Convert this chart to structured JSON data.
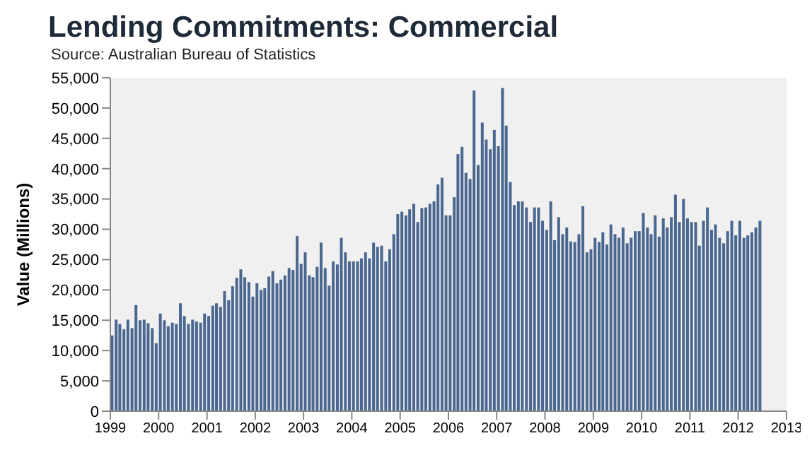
{
  "chart_data": {
    "type": "bar",
    "title": "Lending Commitments: Commercial",
    "subtitle": "Source: Australian Bureau of Statistics",
    "ylabel": "Value (Millions)",
    "color": "#4a6790",
    "x": [
      "1999-01",
      "1999-02",
      "1999-03",
      "1999-04",
      "1999-05",
      "1999-06",
      "1999-07",
      "1999-08",
      "1999-09",
      "1999-10",
      "1999-11",
      "1999-12",
      "2000-01",
      "2000-02",
      "2000-03",
      "2000-04",
      "2000-05",
      "2000-06",
      "2000-07",
      "2000-08",
      "2000-09",
      "2000-10",
      "2000-11",
      "2000-12",
      "2001-01",
      "2001-02",
      "2001-03",
      "2001-04",
      "2001-05",
      "2001-06",
      "2001-07",
      "2001-08",
      "2001-09",
      "2001-10",
      "2001-11",
      "2001-12",
      "2002-01",
      "2002-02",
      "2002-03",
      "2002-04",
      "2002-05",
      "2002-06",
      "2002-07",
      "2002-08",
      "2002-09",
      "2002-10",
      "2002-11",
      "2002-12",
      "2003-01",
      "2003-02",
      "2003-03",
      "2003-04",
      "2003-05",
      "2003-06",
      "2003-07",
      "2003-08",
      "2003-09",
      "2003-10",
      "2003-11",
      "2003-12",
      "2004-01",
      "2004-02",
      "2004-03",
      "2004-04",
      "2004-05",
      "2004-06",
      "2004-07",
      "2004-08",
      "2004-09",
      "2004-10",
      "2004-11",
      "2004-12",
      "2005-01",
      "2005-02",
      "2005-03",
      "2005-04",
      "2005-05",
      "2005-06",
      "2005-07",
      "2005-08",
      "2005-09",
      "2005-10",
      "2005-11",
      "2005-12",
      "2006-01",
      "2006-02",
      "2006-03",
      "2006-04",
      "2006-05",
      "2006-06",
      "2006-07",
      "2006-08",
      "2006-09",
      "2006-10",
      "2006-11",
      "2006-12",
      "2007-01",
      "2007-02",
      "2007-03",
      "2007-04",
      "2007-05",
      "2007-06",
      "2007-07",
      "2007-08",
      "2007-09",
      "2007-10",
      "2007-11",
      "2007-12",
      "2008-01",
      "2008-02",
      "2008-03",
      "2008-04",
      "2008-05",
      "2008-06",
      "2008-07",
      "2008-08",
      "2008-09",
      "2008-10",
      "2008-11",
      "2008-12",
      "2009-01",
      "2009-02",
      "2009-03",
      "2009-04",
      "2009-05",
      "2009-06",
      "2009-07",
      "2009-08",
      "2009-09",
      "2009-10",
      "2009-11",
      "2009-12",
      "2010-01",
      "2010-02",
      "2010-03",
      "2010-04",
      "2010-05",
      "2010-06",
      "2010-07",
      "2010-08",
      "2010-09",
      "2010-10",
      "2010-11",
      "2010-12",
      "2011-01",
      "2011-02",
      "2011-03",
      "2011-04",
      "2011-05",
      "2011-06",
      "2011-07",
      "2011-08",
      "2011-09",
      "2011-10",
      "2011-11",
      "2011-12",
      "2012-01",
      "2012-02",
      "2012-03",
      "2012-04",
      "2012-05",
      "2012-06"
    ],
    "values": [
      12500,
      15100,
      14400,
      13500,
      15100,
      13700,
      17500,
      15000,
      15100,
      14500,
      13700,
      11200,
      16100,
      15000,
      14000,
      14600,
      14400,
      17800,
      15700,
      14400,
      15100,
      14800,
      14600,
      16100,
      15700,
      17400,
      17800,
      17200,
      19800,
      18300,
      20600,
      22000,
      23400,
      22100,
      21300,
      18900,
      21100,
      20000,
      20300,
      22200,
      23100,
      21100,
      21700,
      22400,
      23600,
      23300,
      28900,
      24300,
      26200,
      22400,
      22100,
      23800,
      27800,
      23600,
      20700,
      24700,
      24200,
      28600,
      26200,
      24700,
      24700,
      24700,
      25200,
      26200,
      25200,
      27800,
      27100,
      27300,
      24700,
      26700,
      29200,
      32500,
      32900,
      32300,
      33300,
      34200,
      31200,
      33500,
      33600,
      34200,
      34600,
      37400,
      38500,
      32300,
      32300,
      35300,
      42400,
      43600,
      39300,
      38300,
      52900,
      40600,
      47600,
      44800,
      43200,
      46400,
      43700,
      53300,
      47100,
      37800,
      34000,
      34600,
      34600,
      33600,
      31200,
      33600,
      33600,
      31400,
      29900,
      34600,
      28200,
      32000,
      29200,
      30300,
      28000,
      27900,
      29200,
      33800,
      26200,
      26700,
      28600,
      27900,
      29500,
      27500,
      30800,
      29200,
      28600,
      30300,
      27700,
      28600,
      29700,
      29700,
      32700,
      30300,
      29200,
      32300,
      28800,
      31800,
      30300,
      32000,
      35700,
      31200,
      35000,
      31800,
      31200,
      31200,
      27300,
      31400,
      33600,
      29900,
      30800,
      28600,
      27700,
      29700,
      31400,
      29000,
      31400,
      28600,
      29000,
      29500,
      30300,
      31400
    ],
    "xlim": [
      "1999",
      "2013"
    ],
    "xticks": [
      "1999",
      "2000",
      "2001",
      "2002",
      "2003",
      "2004",
      "2005",
      "2006",
      "2007",
      "2008",
      "2009",
      "2010",
      "2011",
      "2012",
      "2013"
    ],
    "ylim": [
      0,
      55000
    ],
    "yticks": [
      0,
      {
        "value": 5000,
        "label": "5,000"
      },
      {
        "value": 10000,
        "label": "10,000"
      },
      {
        "value": 15000,
        "label": "15,000"
      },
      {
        "value": 20000,
        "label": "20,000"
      },
      {
        "value": 25000,
        "label": "25,000"
      },
      {
        "value": 30000,
        "label": "30,000"
      },
      {
        "value": 35000,
        "label": "35,000"
      },
      {
        "value": 40000,
        "label": "40,000"
      },
      {
        "value": 45000,
        "label": "45,000"
      },
      {
        "value": 50000,
        "label": "50,000"
      },
      {
        "value": 55000,
        "label": "55,000"
      }
    ]
  }
}
